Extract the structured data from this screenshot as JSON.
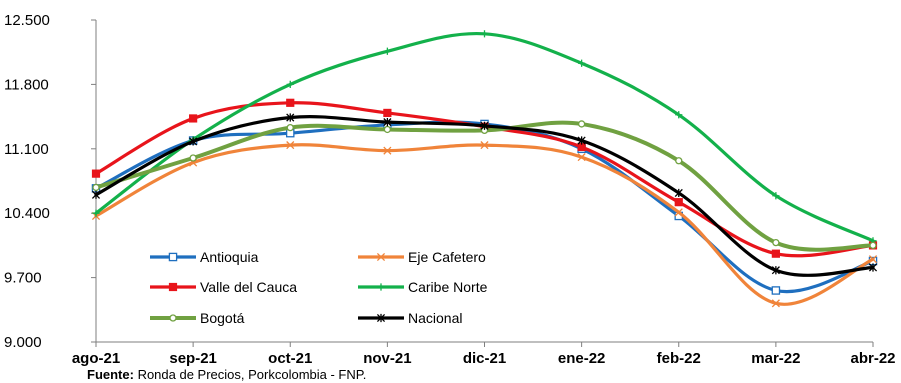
{
  "chart_data": {
    "type": "line",
    "title": "",
    "xlabel": "",
    "ylabel": "",
    "categories": [
      "ago-21",
      "sep-21",
      "oct-21",
      "nov-21",
      "dic-21",
      "ene-22",
      "feb-22",
      "mar-22",
      "abr-22"
    ],
    "y_ticks": [
      "9.000",
      "9.700",
      "10.400",
      "11.100",
      "11.800",
      "12.500"
    ],
    "ylim": [
      9000,
      12500
    ],
    "grid": false,
    "smooth": true,
    "legend_position": "bottom-left (inside plot)",
    "series": [
      {
        "name": "Antioquia",
        "color": "#1f6fbf",
        "marker": "square",
        "values": [
          10670,
          11190,
          11270,
          11360,
          11370,
          11100,
          10370,
          9560,
          9880
        ]
      },
      {
        "name": "Eje Cafetero",
        "color": "#f0843a",
        "marker": "x",
        "values": [
          10370,
          10950,
          11140,
          11080,
          11140,
          11010,
          10410,
          9420,
          9900
        ]
      },
      {
        "name": "Valle del Cauca",
        "color": "#e8141b",
        "marker": "square-filled",
        "values": [
          10830,
          11430,
          11600,
          11490,
          11340,
          11120,
          10520,
          9960,
          10050
        ]
      },
      {
        "name": "Caribe Norte",
        "color": "#13b14b",
        "marker": "plus",
        "values": [
          10400,
          11200,
          11800,
          12160,
          12350,
          12030,
          11470,
          10590,
          10100
        ]
      },
      {
        "name": "Bogotá",
        "color": "#70a141",
        "marker": "circle",
        "values": [
          10680,
          11000,
          11330,
          11310,
          11300,
          11370,
          10970,
          10080,
          10050
        ]
      },
      {
        "name": "Nacional",
        "color": "#000000",
        "marker": "star",
        "values": [
          10600,
          11180,
          11440,
          11390,
          11350,
          11190,
          10620,
          9780,
          9810
        ]
      }
    ]
  },
  "source": {
    "label": "Fuente:",
    "text": " Ronda de Precios, Porkcolombia  - FNP."
  }
}
